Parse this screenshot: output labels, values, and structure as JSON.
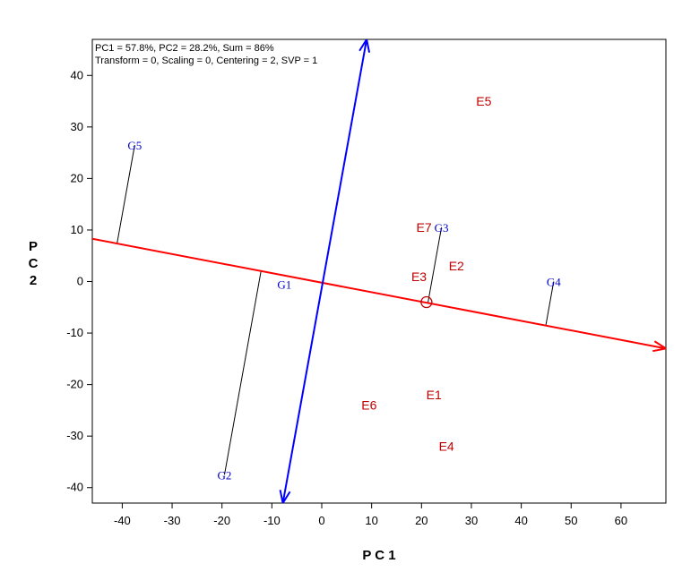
{
  "chart_data": {
    "type": "scatter",
    "title": "",
    "info_lines": [
      "PC1 = 57.8%, PC2 = 28.2%, Sum = 86%",
      "Transform = 0, Scaling = 0, Centering = 2, SVP = 1"
    ],
    "xlabel": "P C 1",
    "ylabel": [
      "P",
      "C",
      "2"
    ],
    "xlim": [
      -46,
      69
    ],
    "ylim": [
      -43,
      47
    ],
    "xticks": [
      -40,
      -30,
      -20,
      -10,
      0,
      10,
      20,
      30,
      40,
      50,
      60
    ],
    "yticks": [
      -40,
      -30,
      -20,
      -10,
      0,
      10,
      20,
      30,
      40
    ],
    "grid": false,
    "colors": {
      "environment": "#c00000",
      "genotype": "#0000cc",
      "mean_axis": "#ff0000",
      "perpendicular_axis": "#0000ff",
      "projection": "#000000"
    },
    "series": [
      {
        "kind": "environment",
        "points": [
          {
            "label": "E1",
            "x": 22.5,
            "y": -22
          },
          {
            "label": "E2",
            "x": 27,
            "y": 3
          },
          {
            "label": "E3",
            "x": 19.5,
            "y": 1
          },
          {
            "label": "E4",
            "x": 25,
            "y": -32
          },
          {
            "label": "E5",
            "x": 32.5,
            "y": 35
          },
          {
            "label": "E6",
            "x": 9.5,
            "y": -24
          },
          {
            "label": "E7",
            "x": 20.5,
            "y": 10.5
          }
        ]
      },
      {
        "kind": "genotype",
        "points": [
          {
            "label": "G1",
            "x": -7.5,
            "y": -0.5
          },
          {
            "label": "G2",
            "x": -19.5,
            "y": -37.5
          },
          {
            "label": "G3",
            "x": 24,
            "y": 10.5
          },
          {
            "label": "G4",
            "x": 46.5,
            "y": 0
          },
          {
            "label": "G5",
            "x": -37.5,
            "y": 26.5
          }
        ]
      }
    ],
    "mean_environment_axis": {
      "from": [
        -46,
        8.3
      ],
      "to": [
        69,
        -13
      ],
      "arrowhead": "end"
    },
    "perpendicular_axis": {
      "from": [
        -7.8,
        -43
      ],
      "to": [
        9,
        47
      ],
      "arrowheads": "both"
    },
    "average_environment_marker": {
      "x": 21,
      "y": -4
    }
  }
}
